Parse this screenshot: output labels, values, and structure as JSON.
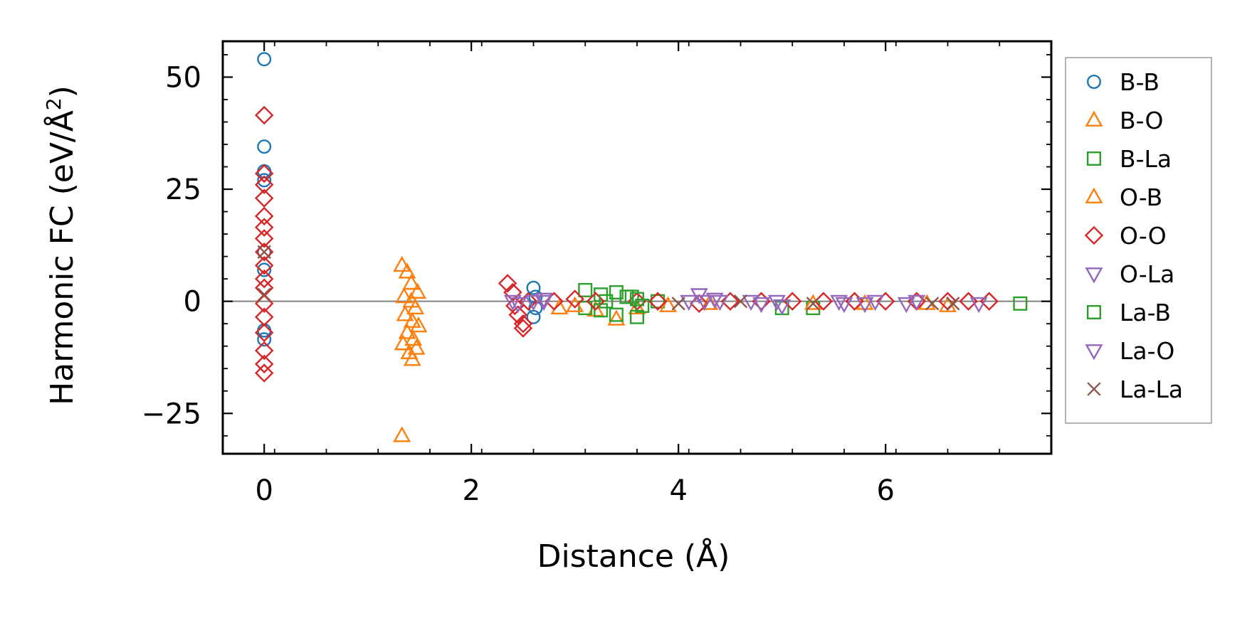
{
  "chart_data": {
    "type": "scatter",
    "title": "",
    "xlabel": "Distance (Å)",
    "ylabel": "Harmonic FC (eV/Å",
    "ylabel_sup": "2",
    "ylabel_close": ")",
    "xlim": [
      -0.4,
      7.6
    ],
    "ylim": [
      -34,
      58
    ],
    "xticks": [
      0,
      2,
      4,
      6
    ],
    "xtick_labels": [
      "0",
      "2",
      "4",
      "6"
    ],
    "yticks": [
      50,
      25,
      0,
      -25
    ],
    "ytick_labels": [
      "50",
      "25",
      "0",
      "−25"
    ],
    "zero_line": 0,
    "grid": false,
    "legend_position": "right",
    "series": [
      {
        "name": "B-B",
        "marker": "circle",
        "color": "#1f77b4",
        "points": [
          [
            0,
            54
          ],
          [
            0,
            34.5
          ],
          [
            0,
            29
          ],
          [
            0,
            27
          ],
          [
            0,
            11
          ],
          [
            0,
            7
          ],
          [
            0,
            -6.5
          ],
          [
            0,
            -8.5
          ],
          [
            2.6,
            3
          ],
          [
            2.62,
            1
          ],
          [
            2.62,
            -1.5
          ],
          [
            2.6,
            -3.5
          ]
        ]
      },
      {
        "name": "B-O",
        "marker": "triangle-up",
        "color": "#ff7f0e",
        "points": [
          [
            1.33,
            8
          ],
          [
            1.38,
            6.5
          ],
          [
            1.42,
            4
          ],
          [
            1.48,
            2
          ],
          [
            1.35,
            1
          ],
          [
            1.42,
            0
          ],
          [
            1.46,
            -1.5
          ],
          [
            1.36,
            -3
          ],
          [
            1.43,
            -4.5
          ],
          [
            1.49,
            -5.5
          ],
          [
            1.38,
            -7
          ],
          [
            1.44,
            -8.5
          ],
          [
            1.34,
            -9.5
          ],
          [
            1.47,
            -10.5
          ],
          [
            1.4,
            -11.5
          ],
          [
            1.43,
            -13
          ],
          [
            1.33,
            -30
          ],
          [
            2.85,
            -1.5
          ],
          [
            3.2,
            -2
          ],
          [
            3.4,
            -4
          ],
          [
            3.6,
            -1.5
          ]
        ]
      },
      {
        "name": "B-La",
        "marker": "square",
        "color": "#2ca02c",
        "points": [
          [
            3.1,
            2.5
          ],
          [
            3.1,
            -1.5
          ],
          [
            3.25,
            1.5
          ],
          [
            3.25,
            -2
          ],
          [
            3.4,
            2
          ],
          [
            3.4,
            -3
          ],
          [
            3.55,
            1
          ],
          [
            3.6,
            -3.5
          ],
          [
            3.8,
            0
          ],
          [
            5,
            -1.5
          ],
          [
            5.3,
            -1.5
          ],
          [
            7.3,
            -0.5
          ]
        ]
      },
      {
        "name": "O-B",
        "marker": "triangle-up",
        "color": "#ff7f0e",
        "points": [
          [
            3.0,
            -1
          ],
          [
            3.9,
            -1
          ],
          [
            4.3,
            -0.5
          ],
          [
            5.3,
            -0.5
          ],
          [
            5.8,
            -0.5
          ],
          [
            6.4,
            -0.5
          ],
          [
            6.6,
            -1
          ]
        ]
      },
      {
        "name": "O-O",
        "marker": "diamond",
        "color": "#d62728",
        "points": [
          [
            0,
            41.5
          ],
          [
            0,
            28.5
          ],
          [
            0,
            26
          ],
          [
            0,
            23
          ],
          [
            0,
            19
          ],
          [
            0,
            16.5
          ],
          [
            0,
            14
          ],
          [
            0,
            11
          ],
          [
            0,
            8
          ],
          [
            0,
            5
          ],
          [
            0,
            3
          ],
          [
            0,
            -0.5
          ],
          [
            0,
            -3.5
          ],
          [
            0,
            -7
          ],
          [
            0,
            -11
          ],
          [
            0,
            -14
          ],
          [
            0,
            -16
          ],
          [
            2.35,
            4
          ],
          [
            2.4,
            2
          ],
          [
            2.42,
            -1
          ],
          [
            2.45,
            -3
          ],
          [
            2.5,
            -5
          ],
          [
            2.5,
            -6
          ],
          [
            2.55,
            0
          ],
          [
            2.8,
            0
          ],
          [
            3.0,
            0.5
          ],
          [
            3.2,
            0
          ],
          [
            3.6,
            0
          ],
          [
            3.8,
            0
          ],
          [
            4.2,
            -0.5
          ],
          [
            4.5,
            0
          ],
          [
            4.8,
            0
          ],
          [
            5.1,
            0
          ],
          [
            5.4,
            0
          ],
          [
            5.7,
            0
          ],
          [
            6.0,
            0
          ],
          [
            6.3,
            0
          ],
          [
            6.6,
            0
          ],
          [
            6.8,
            0
          ],
          [
            7.0,
            0
          ]
        ]
      },
      {
        "name": "O-La",
        "marker": "triangle-down",
        "color": "#9467bd",
        "points": [
          [
            2.45,
            -0.5
          ],
          [
            2.7,
            0
          ],
          [
            4.2,
            1.5
          ],
          [
            4.4,
            0
          ],
          [
            4.8,
            -0.5
          ],
          [
            5.0,
            -1
          ],
          [
            5.6,
            -0.5
          ],
          [
            5.8,
            -0.5
          ],
          [
            6.2,
            -0.5
          ],
          [
            6.9,
            -0.5
          ]
        ]
      },
      {
        "name": "La-B",
        "marker": "square",
        "color": "#2ca02c",
        "points": [
          [
            3.3,
            0
          ],
          [
            3.5,
            1
          ],
          [
            3.6,
            0.5
          ],
          [
            3.65,
            -1
          ]
        ]
      },
      {
        "name": "La-O",
        "marker": "triangle-down",
        "color": "#9467bd",
        "points": [
          [
            2.4,
            0
          ],
          [
            2.6,
            0
          ],
          [
            2.7,
            0.5
          ],
          [
            4.1,
            0
          ],
          [
            4.25,
            0
          ],
          [
            4.35,
            0.5
          ],
          [
            4.7,
            0
          ],
          [
            4.95,
            0
          ],
          [
            5.55,
            0
          ],
          [
            5.9,
            0
          ],
          [
            6.3,
            0
          ]
        ]
      },
      {
        "name": "La-La",
        "marker": "x",
        "color": "#8c564b",
        "points": [
          [
            0,
            11
          ],
          [
            0,
            1.5
          ],
          [
            4.0,
            -0.5
          ],
          [
            4.6,
            0
          ],
          [
            5.3,
            -0.5
          ],
          [
            6.45,
            -0.5
          ],
          [
            6.65,
            -0.5
          ]
        ]
      }
    ]
  }
}
